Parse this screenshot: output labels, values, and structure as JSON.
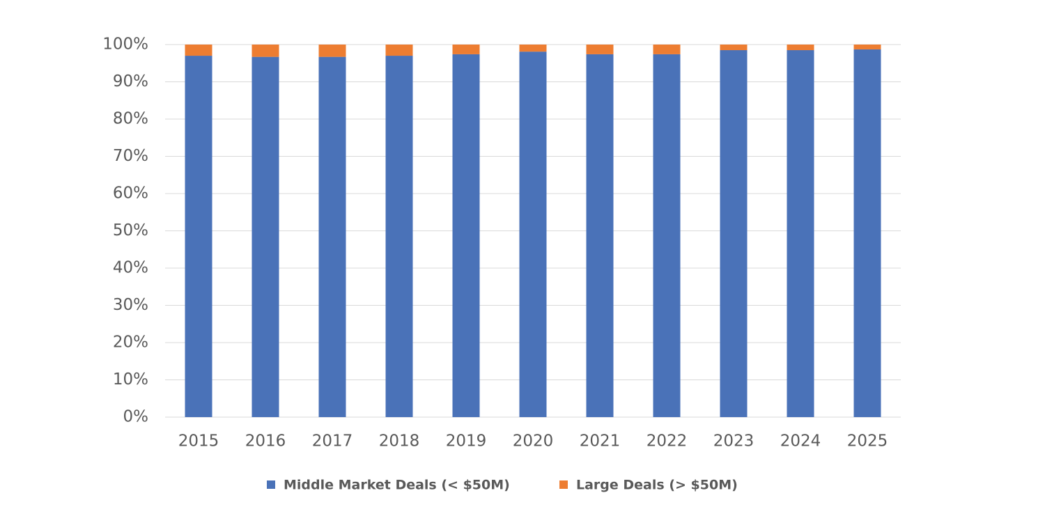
{
  "chart_data": {
    "type": "stacked_bar",
    "categories": [
      "2015",
      "2016",
      "2017",
      "2018",
      "2019",
      "2020",
      "2021",
      "2022",
      "2023",
      "2024",
      "2025"
    ],
    "series": [
      {
        "name": "Middle Market Deals (< $50M)",
        "color": "#4a72b8",
        "values": [
          97.0,
          96.7,
          96.7,
          97.0,
          97.4,
          98.1,
          97.4,
          97.4,
          98.5,
          98.5,
          98.7
        ]
      },
      {
        "name": "Large Deals (> $50M)",
        "color": "#ed7d31",
        "values": [
          3.0,
          3.3,
          3.3,
          3.0,
          2.6,
          1.9,
          2.6,
          2.6,
          1.5,
          1.5,
          1.3
        ]
      }
    ],
    "ylim": [
      0,
      100
    ],
    "yticks": [
      {
        "value": 0,
        "label": "0%"
      },
      {
        "value": 10,
        "label": "10%"
      },
      {
        "value": 20,
        "label": "20%"
      },
      {
        "value": 30,
        "label": "30%"
      },
      {
        "value": 40,
        "label": "40%"
      },
      {
        "value": 50,
        "label": "50%"
      },
      {
        "value": 60,
        "label": "60%"
      },
      {
        "value": 70,
        "label": "70%"
      },
      {
        "value": 80,
        "label": "80%"
      },
      {
        "value": 90,
        "label": "90%"
      },
      {
        "value": 100,
        "label": "100%"
      }
    ],
    "grid": true,
    "legend": "bottom"
  }
}
